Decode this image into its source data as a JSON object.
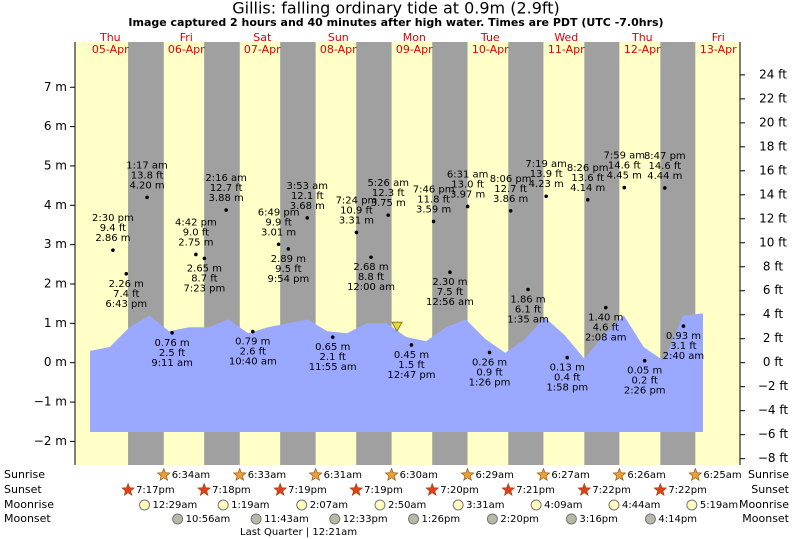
{
  "chart_data": {
    "type": "tide",
    "title": "Gillis: falling  ordinary tide at 0.9m (2.9ft)",
    "subtitle": "Image captured 2 hours and 40 minutes after high water. Times are PDT (UTC -7.0hrs)",
    "current_level": 0.9,
    "ylim": [
      -2.6,
      8.15
    ],
    "yticks": [
      {
        "value": -2,
        "label": "−2 m"
      },
      {
        "value": -1,
        "label": "−1 m"
      },
      {
        "value": 0,
        "label": "0 m"
      },
      {
        "value": 1,
        "label": "1 m"
      },
      {
        "value": 2,
        "label": "2 m"
      },
      {
        "value": 3,
        "label": "3 m"
      },
      {
        "value": 4,
        "label": "4 m"
      },
      {
        "value": 5,
        "label": "5 m"
      },
      {
        "value": 6,
        "label": "6 m"
      },
      {
        "value": 7,
        "label": "7 m"
      }
    ],
    "y2lim": [
      -8.53,
      26.74
    ],
    "y2ticks": [
      {
        "value": -8,
        "label": "−8 ft"
      },
      {
        "value": -6,
        "label": "−6 ft"
      },
      {
        "value": -4,
        "label": "−4 ft"
      },
      {
        "value": -2,
        "label": "−2 ft"
      },
      {
        "value": 0,
        "label": "0 ft"
      },
      {
        "value": 2,
        "label": "2 ft"
      },
      {
        "value": 4,
        "label": "4 ft"
      },
      {
        "value": 6,
        "label": "6 ft"
      },
      {
        "value": 8,
        "label": "8 ft"
      },
      {
        "value": 10,
        "label": "10 ft"
      },
      {
        "value": 12,
        "label": "12 ft"
      },
      {
        "value": 14,
        "label": "14 ft"
      },
      {
        "value": 16,
        "label": "16 ft"
      },
      {
        "value": 18,
        "label": "18 ft"
      },
      {
        "value": 20,
        "label": "20 ft"
      },
      {
        "value": 22,
        "label": "22 ft"
      },
      {
        "value": 24,
        "label": "24 ft"
      }
    ],
    "tide_curve": {
      "color": "#9aa8ff",
      "values": [
        0.3,
        0.4,
        0.9,
        1.2,
        0.8,
        0.9,
        0.9,
        1.1,
        0.75,
        0.9,
        1.0,
        1.1,
        0.8,
        0.75,
        1.0,
        1.0,
        0.65,
        0.55,
        0.9,
        1.1,
        0.6,
        0.25,
        0.6,
        1.15,
        0.7,
        0.1,
        0.7,
        1.2,
        0.4,
        0.05,
        1.2,
        1.25
      ]
    },
    "row_labels": [
      "Sunrise",
      "Sunset",
      "Moonrise",
      "Moonset"
    ],
    "moon_phase": "Last Quarter | 12:21am",
    "days": [
      {
        "weekday": "Thu",
        "date": "05-Apr",
        "sunrise": null,
        "sunset": "7:17pm",
        "moonrise": null,
        "moonset": null,
        "events": [
          {
            "time": "2:30 pm",
            "ft": "9.4 ft",
            "m": {
              "value": 2.86,
              "label": "2.86 m"
            }
          },
          {
            "time": "6:43 pm",
            "ft": "7.4 ft",
            "m": {
              "value": 2.26,
              "label": "2.26 m"
            }
          }
        ]
      },
      {
        "weekday": "Fri",
        "date": "06-Apr",
        "sunrise": "6:34am",
        "sunset": "7:18pm",
        "moonrise": "12:29am",
        "moonset": "10:56am",
        "events": [
          {
            "time": "1:17 am",
            "ft": "13.8 ft",
            "m": {
              "value": 4.2,
              "label": "4.20 m"
            }
          },
          {
            "time": "9:11 am",
            "ft": "2.5 ft",
            "m": {
              "value": 0.76,
              "label": "0.76 m"
            }
          },
          {
            "time": "4:42 pm",
            "ft": "9.0 ft",
            "m": {
              "value": 2.75,
              "label": "2.75 m"
            }
          },
          {
            "time": "7:23 pm",
            "ft": "8.7 ft",
            "m": {
              "value": 2.65,
              "label": "2.65 m"
            }
          }
        ]
      },
      {
        "weekday": "Sat",
        "date": "07-Apr",
        "sunrise": "6:33am",
        "sunset": "7:19pm",
        "moonrise": "1:19am",
        "moonset": "11:43am",
        "events": [
          {
            "time": "2:16 am",
            "ft": "12.7 ft",
            "m": {
              "value": 3.88,
              "label": "3.88 m"
            }
          },
          {
            "time": "10:40 am",
            "ft": "2.6 ft",
            "m": {
              "value": 0.79,
              "label": "0.79 m"
            }
          },
          {
            "time": "6:49 pm",
            "ft": "9.9 ft",
            "m": {
              "value": 3.01,
              "label": "3.01 m"
            }
          },
          {
            "time": "9:54 pm",
            "ft": "9.5 ft",
            "m": {
              "value": 2.89,
              "label": "2.89 m"
            }
          }
        ]
      },
      {
        "weekday": "Sun",
        "date": "08-Apr",
        "sunrise": "6:31am",
        "sunset": "7:19pm",
        "moonrise": "2:07am",
        "moonset": "12:33pm",
        "events": [
          {
            "time": "3:53 am",
            "ft": "12.1 ft",
            "m": {
              "value": 3.68,
              "label": "3.68 m"
            }
          },
          {
            "time": "11:55 am",
            "ft": "2.1 ft",
            "m": {
              "value": 0.65,
              "label": "0.65 m"
            }
          },
          {
            "time": "7:24 pm",
            "ft": "10.9 ft",
            "m": {
              "value": 3.31,
              "label": "3.31 m"
            }
          }
        ]
      },
      {
        "weekday": "Mon",
        "date": "09-Apr",
        "sunrise": "6:30am",
        "sunset": "7:20pm",
        "moonrise": "2:50am",
        "moonset": "1:26pm",
        "events": [
          {
            "time": "12:00 am",
            "ft": "8.8 ft",
            "m": {
              "value": 2.68,
              "label": "2.68 m"
            }
          },
          {
            "time": "5:26 am",
            "ft": "12.3 ft",
            "m": {
              "value": 3.75,
              "label": "3.75 m"
            }
          },
          {
            "time": "12:47 pm",
            "ft": "1.5 ft",
            "m": {
              "value": 0.45,
              "label": "0.45 m"
            }
          },
          {
            "time": "7:46 pm",
            "ft": "11.8 ft",
            "m": {
              "value": 3.59,
              "label": "3.59 m"
            }
          }
        ]
      },
      {
        "weekday": "Tue",
        "date": "10-Apr",
        "sunrise": "6:29am",
        "sunset": "7:21pm",
        "moonrise": "3:31am",
        "moonset": "2:20pm",
        "events": [
          {
            "time": "12:56 am",
            "ft": "7.5 ft",
            "m": {
              "value": 2.3,
              "label": "2.30 m"
            }
          },
          {
            "time": "6:31 am",
            "ft": "13.0 ft",
            "m": {
              "value": 3.97,
              "label": "3.97 m"
            }
          },
          {
            "time": "1:26 pm",
            "ft": "0.9 ft",
            "m": {
              "value": 0.26,
              "label": "0.26 m"
            }
          },
          {
            "time": "8:06 pm",
            "ft": "12.7 ft",
            "m": {
              "value": 3.86,
              "label": "3.86 m"
            }
          }
        ]
      },
      {
        "weekday": "Wed",
        "date": "11-Apr",
        "sunrise": "6:27am",
        "sunset": "7:22pm",
        "moonrise": "4:09am",
        "moonset": "3:16pm",
        "events": [
          {
            "time": "1:35 am",
            "ft": "6.1 ft",
            "m": {
              "value": 1.86,
              "label": "1.86 m"
            }
          },
          {
            "time": "7:19 am",
            "ft": "13.9 ft",
            "m": {
              "value": 4.23,
              "label": "4.23 m"
            }
          },
          {
            "time": "1:58 pm",
            "ft": "0.4 ft",
            "m": {
              "value": 0.13,
              "label": "0.13 m"
            }
          },
          {
            "time": "8:26 pm",
            "ft": "13.6 ft",
            "m": {
              "value": 4.14,
              "label": "4.14 m"
            }
          }
        ]
      },
      {
        "weekday": "Thu",
        "date": "12-Apr",
        "sunrise": "6:26am",
        "sunset": "7:22pm",
        "moonrise": "4:44am",
        "moonset": "4:14pm",
        "events": [
          {
            "time": "2:08 am",
            "ft": "4.6 ft",
            "m": {
              "value": 1.4,
              "label": "1.40 m"
            }
          },
          {
            "time": "7:59 am",
            "ft": "14.6 ft",
            "m": {
              "value": 4.45,
              "label": "4.45 m"
            }
          },
          {
            "time": "2:26 pm",
            "ft": "0.2 ft",
            "m": {
              "value": 0.05,
              "label": "0.05 m"
            }
          },
          {
            "time": "8:47 pm",
            "ft": "14.6 ft",
            "m": {
              "value": 4.44,
              "label": "4.44 m"
            }
          }
        ]
      },
      {
        "weekday": "Fri",
        "date": "13-Apr",
        "sunrise": "6:25am",
        "sunset": null,
        "moonrise": "5:19am",
        "moonset": null,
        "events": [
          {
            "time": "2:40 am",
            "ft": "3.1 ft",
            "m": {
              "value": 0.93,
              "label": "0.93 m"
            }
          }
        ]
      }
    ]
  }
}
